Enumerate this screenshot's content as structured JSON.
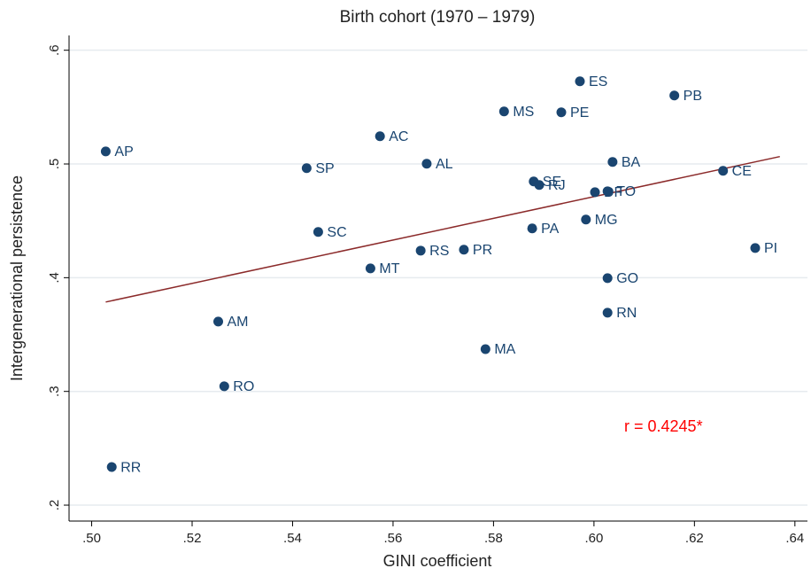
{
  "chart_data": {
    "type": "scatter",
    "title": "Birth cohort (1970 – 1979)",
    "x_label": "GINI coefficient",
    "y_label": "Intergenerational persistence",
    "annotation": "r = 0.4245*",
    "annotation_color": "#ff0000",
    "color": "#1a4570",
    "line_color": "#8b2a2a",
    "grid": true,
    "xlim": [
      0.4955,
      0.6425
    ],
    "ylim": [
      0.186,
      0.613
    ],
    "xticks": [
      {
        "value": 0.5,
        "label": ".50"
      },
      {
        "value": 0.52,
        "label": ".52"
      },
      {
        "value": 0.54,
        "label": ".54"
      },
      {
        "value": 0.56,
        "label": ".56"
      },
      {
        "value": 0.58,
        "label": ".58"
      },
      {
        "value": 0.6,
        "label": ".60"
      },
      {
        "value": 0.62,
        "label": ".62"
      },
      {
        "value": 0.64,
        "label": ".64"
      }
    ],
    "yticks": [
      {
        "value": 0.2,
        "label": ".2"
      },
      {
        "value": 0.3,
        "label": ".3"
      },
      {
        "value": 0.4,
        "label": ".4"
      },
      {
        "value": 0.5,
        "label": ".5"
      },
      {
        "value": 0.6,
        "label": ".6"
      }
    ],
    "labels": [
      "AP",
      "SP",
      "AC",
      "AL",
      "SC",
      "MT",
      "RS",
      "PR",
      "MS",
      "PE",
      "ES",
      "PB",
      "BA",
      "CE",
      "SE",
      "RJ",
      "DF",
      "TO",
      "PA",
      "MG",
      "PI",
      "GO",
      "RN",
      "MA",
      "AM",
      "RO",
      "RR"
    ],
    "x": [
      0.5028,
      0.5428,
      0.5574,
      0.5667,
      0.5451,
      0.5555,
      0.5655,
      0.5741,
      0.5821,
      0.5935,
      0.5972,
      0.616,
      0.6037,
      0.6257,
      0.588,
      0.5891,
      0.6002,
      0.6027,
      0.5877,
      0.5984,
      0.6321,
      0.6027,
      0.6027,
      0.5784,
      0.5252,
      0.5264,
      0.504
    ],
    "y": [
      0.511,
      0.4963,
      0.5244,
      0.5002,
      0.4402,
      0.4082,
      0.4238,
      0.4246,
      0.5462,
      0.5454,
      0.5727,
      0.5602,
      0.5018,
      0.494,
      0.4846,
      0.4815,
      0.4752,
      0.476,
      0.4433,
      0.4511,
      0.4261,
      0.3996,
      0.3692,
      0.3372,
      0.3614,
      0.3045,
      0.2335
    ],
    "fit_line": {
      "x": [
        0.5028,
        0.637
      ],
      "y": [
        0.3786,
        0.5065
      ]
    }
  }
}
